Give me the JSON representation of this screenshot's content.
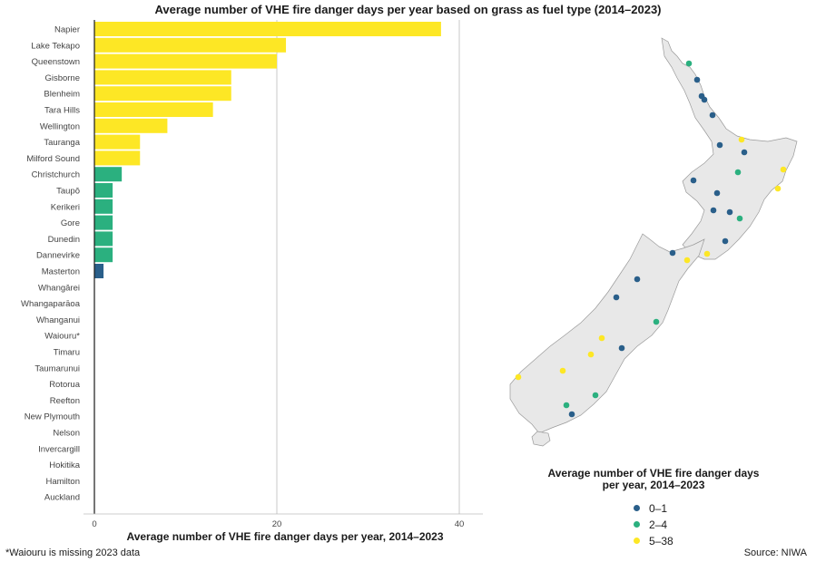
{
  "title": "Average number of VHE fire danger days per year based on grass as fuel type (2014–2023)",
  "colors": {
    "low": "#2a5f8a",
    "mid": "#2bb07f",
    "high": "#fde725",
    "grid": "#c8c8c8",
    "map_fill": "#e8e8e8",
    "map_stroke": "#999999"
  },
  "chart_data": {
    "type": "bar",
    "orientation": "horizontal",
    "title": "Average number of VHE fire danger days per year based on grass as fuel type (2014–2023)",
    "xlabel": "Average number of VHE fire danger days per year, 2014–2023",
    "ylabel": "",
    "xlim": [
      0,
      42
    ],
    "xticks": [
      0,
      20,
      40
    ],
    "grid": true,
    "categories": [
      "Napier",
      "Lake Tekapo",
      "Queenstown",
      "Gisborne",
      "Blenheim",
      "Tara Hills",
      "Wellington",
      "Tauranga",
      "Milford Sound",
      "Christchurch",
      "Taupō",
      "Kerikeri",
      "Gore",
      "Dunedin",
      "Dannevirke",
      "Masterton",
      "Whangārei",
      "Whangaparāoa",
      "Whanganui",
      "Waiouru*",
      "Timaru",
      "Taumarunui",
      "Rotorua",
      "Reefton",
      "New Plymouth",
      "Nelson",
      "Invercargill",
      "Hokitika",
      "Hamilton",
      "Auckland"
    ],
    "values": [
      38,
      21,
      20,
      15,
      15,
      13,
      8,
      5,
      5,
      3,
      2,
      2,
      2,
      2,
      2,
      1,
      0,
      0,
      0,
      0,
      0,
      0,
      0,
      0,
      0,
      0,
      0,
      0,
      0,
      0
    ],
    "color_groups": [
      "high",
      "high",
      "high",
      "high",
      "high",
      "high",
      "high",
      "high",
      "high",
      "mid",
      "mid",
      "mid",
      "mid",
      "mid",
      "mid",
      "low",
      "low",
      "low",
      "low",
      "low",
      "low",
      "low",
      "low",
      "low",
      "low",
      "low",
      "low",
      "low",
      "low",
      "low"
    ]
  },
  "legend": {
    "title": "Average number of VHE fire danger days per year, 2014–2023",
    "items": [
      {
        "label": "0–1",
        "group": "low"
      },
      {
        "label": "2–4",
        "group": "mid"
      },
      {
        "label": "5–38",
        "group": "high"
      }
    ]
  },
  "map": {
    "stations": [
      {
        "group": "mid"
      },
      {
        "group": "low"
      },
      {
        "group": "low"
      },
      {
        "group": "low"
      },
      {
        "group": "low"
      },
      {
        "group": "high"
      },
      {
        "group": "low"
      },
      {
        "group": "low"
      },
      {
        "group": "mid"
      },
      {
        "group": "high"
      },
      {
        "group": "low"
      },
      {
        "group": "high"
      },
      {
        "group": "low"
      },
      {
        "group": "low"
      },
      {
        "group": "low"
      },
      {
        "group": "mid"
      },
      {
        "group": "low"
      },
      {
        "group": "low"
      },
      {
        "group": "high"
      },
      {
        "group": "high"
      },
      {
        "group": "low"
      },
      {
        "group": "low"
      },
      {
        "group": "mid"
      },
      {
        "group": "high"
      },
      {
        "group": "high"
      },
      {
        "group": "low"
      },
      {
        "group": "high"
      },
      {
        "group": "high"
      },
      {
        "group": "mid"
      },
      {
        "group": "mid"
      },
      {
        "group": "low"
      }
    ]
  },
  "footnote": "*Waiouru is missing 2023 data",
  "source": "Source: NIWA"
}
